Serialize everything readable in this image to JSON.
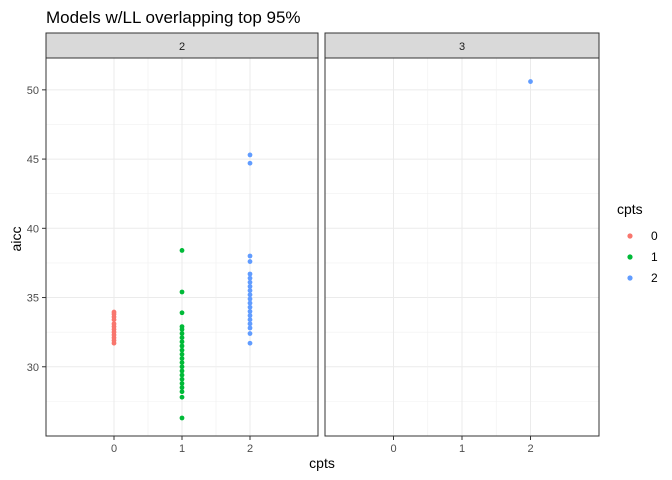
{
  "chart_data": {
    "type": "scatter",
    "title": "Models w/LL overlapping top 95%",
    "xlabel": "cpts",
    "ylabel": "aicc",
    "facet_variable": "cpts",
    "facets": [
      "2",
      "3"
    ],
    "x_categories": [
      "0",
      "1",
      "2"
    ],
    "ylim": [
      25.0,
      52.3
    ],
    "y_ticks": [
      30,
      35,
      40,
      45,
      50
    ],
    "grid": true,
    "legend": {
      "title": "cpts",
      "position": "right",
      "entries": [
        "0",
        "1",
        "2"
      ]
    },
    "colors": {
      "0": "#F8766D",
      "1": "#00BA38",
      "2": "#619CFF"
    },
    "series": [
      {
        "name": "0",
        "points": [
          {
            "facet": "2",
            "x": 0,
            "y": 31.7
          },
          {
            "facet": "2",
            "x": 0,
            "y": 31.9
          },
          {
            "facet": "2",
            "x": 0,
            "y": 32.1
          },
          {
            "facet": "2",
            "x": 0,
            "y": 32.3
          },
          {
            "facet": "2",
            "x": 0,
            "y": 32.5
          },
          {
            "facet": "2",
            "x": 0,
            "y": 32.7
          },
          {
            "facet": "2",
            "x": 0,
            "y": 32.9
          },
          {
            "facet": "2",
            "x": 0,
            "y": 33.1
          },
          {
            "facet": "2",
            "x": 0,
            "y": 33.4
          },
          {
            "facet": "2",
            "x": 0,
            "y": 33.6
          },
          {
            "facet": "2",
            "x": 0,
            "y": 33.8
          },
          {
            "facet": "2",
            "x": 0,
            "y": 33.95
          }
        ]
      },
      {
        "name": "1",
        "points": [
          {
            "facet": "2",
            "x": 1,
            "y": 26.3
          },
          {
            "facet": "2",
            "x": 1,
            "y": 27.8
          },
          {
            "facet": "2",
            "x": 1,
            "y": 28.2
          },
          {
            "facet": "2",
            "x": 1,
            "y": 28.5
          },
          {
            "facet": "2",
            "x": 1,
            "y": 28.8
          },
          {
            "facet": "2",
            "x": 1,
            "y": 29.1
          },
          {
            "facet": "2",
            "x": 1,
            "y": 29.4
          },
          {
            "facet": "2",
            "x": 1,
            "y": 29.7
          },
          {
            "facet": "2",
            "x": 1,
            "y": 30.0
          },
          {
            "facet": "2",
            "x": 1,
            "y": 30.3
          },
          {
            "facet": "2",
            "x": 1,
            "y": 30.6
          },
          {
            "facet": "2",
            "x": 1,
            "y": 30.9
          },
          {
            "facet": "2",
            "x": 1,
            "y": 31.2
          },
          {
            "facet": "2",
            "x": 1,
            "y": 31.5
          },
          {
            "facet": "2",
            "x": 1,
            "y": 31.8
          },
          {
            "facet": "2",
            "x": 1,
            "y": 32.1
          },
          {
            "facet": "2",
            "x": 1,
            "y": 32.4
          },
          {
            "facet": "2",
            "x": 1,
            "y": 32.7
          },
          {
            "facet": "2",
            "x": 1,
            "y": 32.9
          },
          {
            "facet": "2",
            "x": 1,
            "y": 33.9
          },
          {
            "facet": "2",
            "x": 1,
            "y": 35.4
          },
          {
            "facet": "2",
            "x": 1,
            "y": 38.4
          }
        ]
      },
      {
        "name": "2",
        "points": [
          {
            "facet": "2",
            "x": 2,
            "y": 31.7
          },
          {
            "facet": "2",
            "x": 2,
            "y": 32.4
          },
          {
            "facet": "2",
            "x": 2,
            "y": 32.8
          },
          {
            "facet": "2",
            "x": 2,
            "y": 33.1
          },
          {
            "facet": "2",
            "x": 2,
            "y": 33.4
          },
          {
            "facet": "2",
            "x": 2,
            "y": 33.7
          },
          {
            "facet": "2",
            "x": 2,
            "y": 34.0
          },
          {
            "facet": "2",
            "x": 2,
            "y": 34.3
          },
          {
            "facet": "2",
            "x": 2,
            "y": 34.6
          },
          {
            "facet": "2",
            "x": 2,
            "y": 34.9
          },
          {
            "facet": "2",
            "x": 2,
            "y": 35.2
          },
          {
            "facet": "2",
            "x": 2,
            "y": 35.5
          },
          {
            "facet": "2",
            "x": 2,
            "y": 35.8
          },
          {
            "facet": "2",
            "x": 2,
            "y": 36.1
          },
          {
            "facet": "2",
            "x": 2,
            "y": 36.4
          },
          {
            "facet": "2",
            "x": 2,
            "y": 36.7
          },
          {
            "facet": "2",
            "x": 2,
            "y": 37.6
          },
          {
            "facet": "2",
            "x": 2,
            "y": 38.0
          },
          {
            "facet": "2",
            "x": 2,
            "y": 44.7
          },
          {
            "facet": "2",
            "x": 2,
            "y": 45.3
          },
          {
            "facet": "3",
            "x": 2,
            "y": 50.6
          }
        ]
      }
    ]
  }
}
